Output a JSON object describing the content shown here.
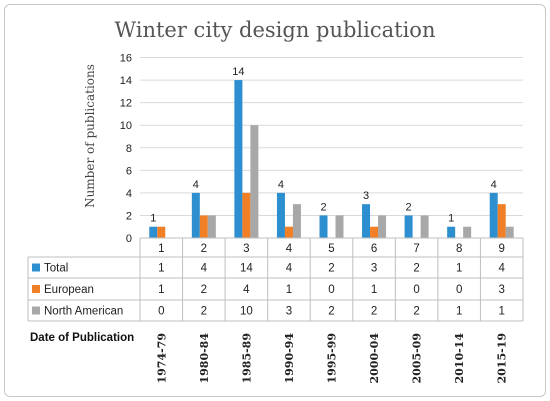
{
  "chart_data": {
    "type": "bar",
    "title": "Winter city design publication",
    "ylabel": "Number of publications",
    "ylim": [
      0,
      16
    ],
    "yticks": [
      0,
      2,
      4,
      6,
      8,
      10,
      12,
      14,
      16
    ],
    "grid": true,
    "legend": "data-table",
    "index_labels": [
      "1",
      "2",
      "3",
      "4",
      "5",
      "6",
      "7",
      "8",
      "9"
    ],
    "categories": [
      "1974-79",
      "1980-84",
      "1985-89",
      "1990-94",
      "1995-99",
      "2000-04",
      "2005-09",
      "2010-14",
      "2015-19"
    ],
    "categories_header": "Date of Publication",
    "series": [
      {
        "name": "Total",
        "color": "#2e8fd0",
        "values": [
          1,
          4,
          14,
          4,
          2,
          3,
          2,
          1,
          4
        ]
      },
      {
        "name": "European",
        "color": "#f07f26",
        "values": [
          1,
          2,
          4,
          1,
          0,
          1,
          0,
          0,
          3
        ]
      },
      {
        "name": "North American",
        "color": "#a8a8a8",
        "values": [
          0,
          2,
          10,
          3,
          2,
          2,
          2,
          1,
          1
        ]
      }
    ],
    "data_labels": {
      "series": "Total",
      "values": [
        1,
        4,
        14,
        4,
        2,
        3,
        2,
        1,
        4
      ]
    }
  }
}
